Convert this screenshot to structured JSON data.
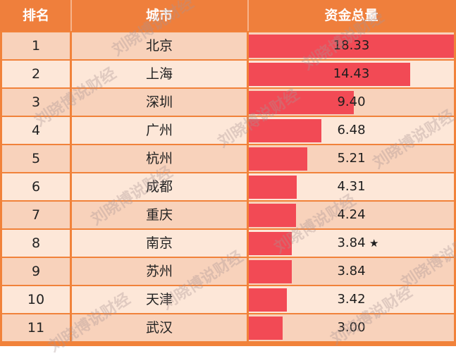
{
  "header": {
    "rank_label": "排名",
    "city_label": "城市",
    "value_label": "资金总量"
  },
  "colors": {
    "header_bg": "#ef7f3c",
    "row_light": "#fde7d8",
    "row_dark": "#f8d2bb",
    "bar": "#f24a55"
  },
  "watermark_text": "刘晓博说财经",
  "chart_data": {
    "type": "bar",
    "orientation": "horizontal",
    "columns": [
      "排名",
      "城市",
      "资金总量"
    ],
    "rows": [
      {
        "rank": "1",
        "city": "北京",
        "value": 18.33,
        "label": "18.33",
        "marker": ""
      },
      {
        "rank": "2",
        "city": "上海",
        "value": 14.43,
        "label": "14.43",
        "marker": ""
      },
      {
        "rank": "3",
        "city": "深圳",
        "value": 9.4,
        "label": "9.40",
        "marker": ""
      },
      {
        "rank": "4",
        "city": "广州",
        "value": 6.48,
        "label": "6.48",
        "marker": ""
      },
      {
        "rank": "5",
        "city": "杭州",
        "value": 5.21,
        "label": "5.21",
        "marker": ""
      },
      {
        "rank": "6",
        "city": "成都",
        "value": 4.31,
        "label": "4.31",
        "marker": ""
      },
      {
        "rank": "7",
        "city": "重庆",
        "value": 4.24,
        "label": "4.24",
        "marker": ""
      },
      {
        "rank": "8",
        "city": "南京",
        "value": 3.84,
        "label": "3.84",
        "marker": "★"
      },
      {
        "rank": "9",
        "city": "苏州",
        "value": 3.84,
        "label": "3.84",
        "marker": ""
      },
      {
        "rank": "10",
        "city": "天津",
        "value": 3.42,
        "label": "3.42",
        "marker": ""
      },
      {
        "rank": "11",
        "city": "武汉",
        "value": 3.0,
        "label": "3.00",
        "marker": ""
      }
    ],
    "xlim": [
      0,
      18.33
    ]
  }
}
